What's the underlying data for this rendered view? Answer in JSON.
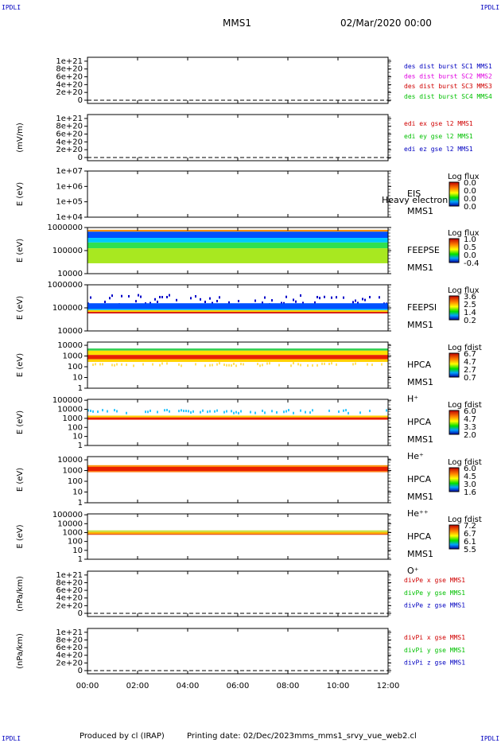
{
  "corner_labels": [
    "IPDLI",
    "IPDLI",
    "IPDLI",
    "IPDLI"
  ],
  "header": {
    "title": "MMS1",
    "date": "02/Mar/2020 00:00"
  },
  "footer": {
    "producer": "Produced by cl (IRAP)",
    "printing": "Printing date: 02/Dec/2023",
    "script": "mms_mms1_srvy_vue_web2.cl"
  },
  "colors": {
    "blue": "#0000c0",
    "magenta": "#e000e0",
    "red": "#d00000",
    "green": "#00c000",
    "zero_line": "#000000"
  },
  "chart_data": {
    "type": "multi-panel time series",
    "x_range": [
      "00:00",
      "12:00"
    ],
    "x_ticks": [
      "00:00",
      "02:00",
      "04:00",
      "06:00",
      "08:00",
      "10:00",
      "12:00"
    ],
    "panels": [
      {
        "id": "des-dist",
        "type": "line",
        "ylabel": "",
        "yticks": [
          "1e+21",
          "8e+20",
          "6e+20",
          "4e+20",
          "2e+20",
          "0"
        ],
        "ylim": [
          0,
          1.1e+21
        ],
        "zero_line": true,
        "legend": [
          {
            "text": "des dist burst SC1 MMS1",
            "color": "#0000c0"
          },
          {
            "text": "des dist burst SC2 MMS2",
            "color": "#e000e0"
          },
          {
            "text": "des dist burst SC3 MMS3",
            "color": "#d00000"
          },
          {
            "text": "des dist burst SC4 MMS4",
            "color": "#00c000"
          }
        ]
      },
      {
        "id": "edi",
        "type": "line",
        "ylabel": "(mV/m)",
        "yticks": [
          "1e+21",
          "8e+20",
          "6e+20",
          "4e+20",
          "2e+20",
          "0"
        ],
        "ylim": [
          0,
          1.1e+21
        ],
        "zero_line": true,
        "legend": [
          {
            "text": "edi ex gse l2 MMS1",
            "color": "#d00000"
          },
          {
            "text": "edi ey gse l2 MMS1",
            "color": "#00c000"
          },
          {
            "text": "edi ez gse l2 MMS1",
            "color": "#0000c0"
          }
        ]
      },
      {
        "id": "eis",
        "type": "spectrogram",
        "ylabel": "E (eV)",
        "yticks": [
          "1e+07",
          "1e+06",
          "1e+05",
          "1e+04"
        ],
        "log_ylim": [
          4,
          7
        ],
        "labels": [
          "EIS",
          "MMS1"
        ],
        "overlay_label": "Heavy electron to",
        "colorbar": {
          "title": "Log flux",
          "ticks": [
            "0.0",
            "0.0",
            "0.0",
            "0.0"
          ]
        },
        "bands": []
      },
      {
        "id": "feepse",
        "type": "spectrogram",
        "ylabel": "E (eV)",
        "yticks": [
          "1000000",
          "100000",
          "10000"
        ],
        "log_ylim": [
          4,
          6
        ],
        "labels": [
          "FEEPSE",
          "MMS1"
        ],
        "colorbar": {
          "title": "Log flux",
          "ticks": [
            "1.0",
            "0.5",
            "0.0",
            "-0.4"
          ]
        },
        "bands": [
          {
            "log_e": [
              5.82,
              5.9
            ],
            "color": "#ff9000"
          },
          {
            "log_e": [
              5.55,
              5.82
            ],
            "color": "#0050ff"
          },
          {
            "log_e": [
              5.35,
              5.55
            ],
            "color": "#00c8ff"
          },
          {
            "log_e": [
              5.1,
              5.35
            ],
            "color": "#30e050"
          },
          {
            "log_e": [
              4.45,
              5.1
            ],
            "color": "#a8e820"
          }
        ]
      },
      {
        "id": "feepsi",
        "type": "spectrogram",
        "ylabel": "E (eV)",
        "yticks": [
          "1000000",
          "100000",
          "10000"
        ],
        "log_ylim": [
          4,
          6
        ],
        "labels": [
          "FEEPSI",
          "MMS1"
        ],
        "colorbar": {
          "title": "Log flux",
          "ticks": [
            "3.6",
            "2.5",
            "1.4",
            "0.2"
          ]
        },
        "bands": [
          {
            "log_e": [
              5.2,
              5.6
            ],
            "color": "#0000c8",
            "sparse": true
          },
          {
            "log_e": [
              4.95,
              5.2
            ],
            "color": "#0050ff"
          },
          {
            "log_e": [
              4.9,
              4.95
            ],
            "color": "#00c8ff"
          },
          {
            "log_e": [
              4.82,
              4.9
            ],
            "color": "#ffd000"
          },
          {
            "log_e": [
              4.76,
              4.82
            ],
            "color": "#d00000"
          }
        ]
      },
      {
        "id": "hpca-h",
        "type": "spectrogram",
        "ylabel": "E (eV)",
        "yticks": [
          "10000",
          "1000",
          "100",
          "10",
          "1"
        ],
        "log_ylim": [
          0,
          4.3
        ],
        "labels": [
          "HPCA",
          "MMS1",
          "H⁺"
        ],
        "colorbar": {
          "title": "Log fdist",
          "ticks": [
            "6.7",
            "4.7",
            "2.7",
            "0.7"
          ]
        },
        "bands": [
          {
            "log_e": [
              3.5,
              3.7
            ],
            "color": "#30d050"
          },
          {
            "log_e": [
              3.1,
              3.5
            ],
            "color": "#ffe000"
          },
          {
            "log_e": [
              2.7,
              3.1
            ],
            "color": "#e82000"
          },
          {
            "log_e": [
              2.45,
              2.7
            ],
            "color": "#ffd000"
          },
          {
            "log_e": [
              2.2,
              2.45
            ],
            "color": "#ffe060",
            "sparse": true
          }
        ]
      },
      {
        "id": "hpca-he1",
        "type": "spectrogram",
        "ylabel": "E (eV)",
        "yticks": [
          "100000",
          "10000",
          "1000",
          "100",
          "10",
          "1"
        ],
        "log_ylim": [
          0,
          5.1
        ],
        "labels": [
          "HPCA",
          "MMS1",
          "He⁺"
        ],
        "colorbar": {
          "title": "Log fdist",
          "ticks": [
            "6.0",
            "4.7",
            "3.3",
            "2.0"
          ]
        },
        "bands": [
          {
            "log_e": [
              3.7,
              4.05
            ],
            "color": "#30c8ff",
            "sparse": true
          },
          {
            "log_e": [
              3.1,
              3.3
            ],
            "color": "#ffd000"
          },
          {
            "log_e": [
              2.85,
              3.1
            ],
            "color": "#e82000"
          }
        ]
      },
      {
        "id": "hpca-he2",
        "type": "spectrogram",
        "ylabel": "E (eV)",
        "yticks": [
          "10000",
          "1000",
          "100",
          "10",
          "1"
        ],
        "log_ylim": [
          0,
          4.3
        ],
        "labels": [
          "HPCA",
          "MMS1",
          "He⁺⁺"
        ],
        "colorbar": {
          "title": "Log fdist",
          "ticks": [
            "6.0",
            "4.5",
            "3.0",
            "1.6"
          ]
        },
        "bands": [
          {
            "log_e": [
              3.35,
              3.5
            ],
            "color": "#ff9000"
          },
          {
            "log_e": [
              2.95,
              3.35
            ],
            "color": "#e82000"
          },
          {
            "log_e": [
              2.85,
              2.95
            ],
            "color": "#ff7000"
          }
        ]
      },
      {
        "id": "hpca-o",
        "type": "spectrogram",
        "ylabel": "E (eV)",
        "yticks": [
          "100000",
          "10000",
          "1000",
          "100",
          "10",
          "1"
        ],
        "log_ylim": [
          0,
          5.1
        ],
        "labels": [
          "HPCA",
          "MMS1",
          "O⁺"
        ],
        "colorbar": {
          "title": "Log fdist",
          "ticks": [
            "7.2",
            "6.7",
            "6.1",
            "5.5"
          ]
        },
        "bands": [
          {
            "log_e": [
              3.05,
              3.25
            ],
            "color": "#c8e040"
          },
          {
            "log_e": [
              2.85,
              3.05
            ],
            "color": "#ffb000"
          },
          {
            "log_e": [
              2.75,
              2.85
            ],
            "color": "#e04000"
          }
        ]
      },
      {
        "id": "divpe",
        "type": "line",
        "ylabel": "(nPa/km)",
        "yticks": [
          "1e+21",
          "8e+20",
          "6e+20",
          "4e+20",
          "2e+20",
          "0"
        ],
        "ylim": [
          0,
          1.1e+21
        ],
        "zero_line": true,
        "legend": [
          {
            "text": "divPe x gse MMS1",
            "color": "#d00000"
          },
          {
            "text": "divPe y gse MMS1",
            "color": "#00c000"
          },
          {
            "text": "divPe z gse MMS1",
            "color": "#0000c0"
          }
        ]
      },
      {
        "id": "divpi",
        "type": "line",
        "ylabel": "(nPa/km)",
        "yticks": [
          "1e+21",
          "8e+20",
          "6e+20",
          "4e+20",
          "2e+20",
          "0"
        ],
        "ylim": [
          0,
          1.1e+21
        ],
        "zero_line": true,
        "legend": [
          {
            "text": "divPi x gse MMS1",
            "color": "#d00000"
          },
          {
            "text": "divPi y gse MMS1",
            "color": "#00c000"
          },
          {
            "text": "divPi z gse MMS1",
            "color": "#0000c0"
          }
        ]
      }
    ]
  }
}
